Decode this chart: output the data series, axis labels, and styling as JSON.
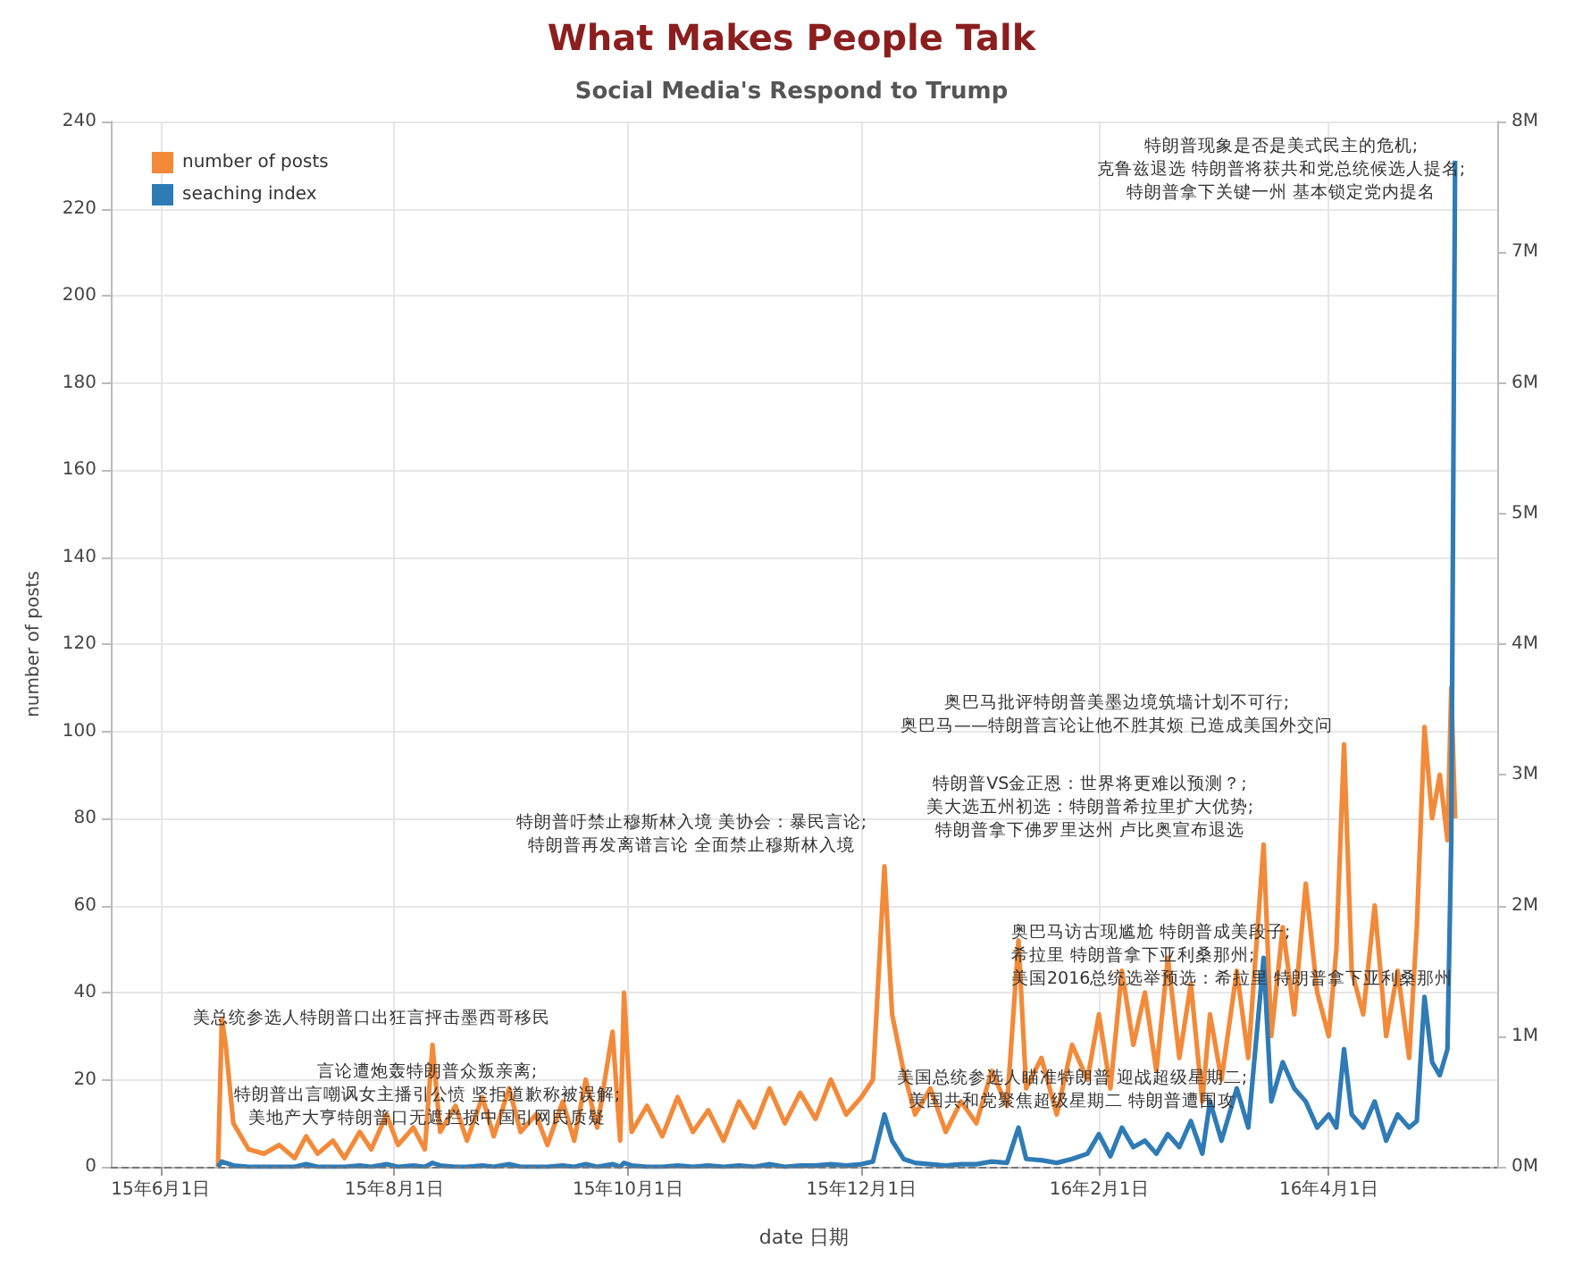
{
  "chart_data": {
    "type": "line",
    "title": "What Makes People Talk",
    "subtitle": "Social Media's Respond to Trump",
    "xlabel": "date 日期",
    "ylabel": "number of posts",
    "x": [
      "2015-06-16",
      "2015-06-17",
      "2015-06-18",
      "2015-06-20",
      "2015-06-24",
      "2015-06-28",
      "2015-07-02",
      "2015-07-06",
      "2015-07-09",
      "2015-07-12",
      "2015-07-16",
      "2015-07-19",
      "2015-07-23",
      "2015-07-26",
      "2015-07-30",
      "2015-08-02",
      "2015-08-06",
      "2015-08-09",
      "2015-08-11",
      "2015-08-13",
      "2015-08-17",
      "2015-08-20",
      "2015-08-24",
      "2015-08-27",
      "2015-08-31",
      "2015-09-03",
      "2015-09-07",
      "2015-09-10",
      "2015-09-14",
      "2015-09-17",
      "2015-09-20",
      "2015-09-23",
      "2015-09-27",
      "2015-09-29",
      "2015-09-30",
      "2015-10-02",
      "2015-10-06",
      "2015-10-10",
      "2015-10-14",
      "2015-10-18",
      "2015-10-22",
      "2015-10-26",
      "2015-10-30",
      "2015-11-03",
      "2015-11-07",
      "2015-11-11",
      "2015-11-15",
      "2015-11-19",
      "2015-11-23",
      "2015-11-27",
      "2015-12-01",
      "2015-12-04",
      "2015-12-07",
      "2015-12-09",
      "2015-12-12",
      "2015-12-15",
      "2015-12-19",
      "2015-12-23",
      "2015-12-27",
      "2015-12-31",
      "2016-01-04",
      "2016-01-08",
      "2016-01-11",
      "2016-01-13",
      "2016-01-17",
      "2016-01-21",
      "2016-01-25",
      "2016-01-29",
      "2016-02-01",
      "2016-02-04",
      "2016-02-07",
      "2016-02-10",
      "2016-02-13",
      "2016-02-16",
      "2016-02-19",
      "2016-02-22",
      "2016-02-25",
      "2016-02-28",
      "2016-03-01",
      "2016-03-04",
      "2016-03-08",
      "2016-03-11",
      "2016-03-15",
      "2016-03-17",
      "2016-03-20",
      "2016-03-23",
      "2016-03-26",
      "2016-03-29",
      "2016-04-01",
      "2016-04-03",
      "2016-04-05",
      "2016-04-07",
      "2016-04-10",
      "2016-04-13",
      "2016-04-16",
      "2016-04-19",
      "2016-04-22",
      "2016-04-24",
      "2016-04-26",
      "2016-04-28",
      "2016-04-30",
      "2016-05-02",
      "2016-05-03",
      "2016-05-04"
    ],
    "series": [
      {
        "name": "number of posts",
        "color": "#f28a3a",
        "values": [
          0,
          34,
          28,
          10,
          4,
          3,
          5,
          2,
          7,
          3,
          6,
          2,
          8,
          4,
          12,
          5,
          9,
          4,
          28,
          8,
          14,
          6,
          16,
          7,
          18,
          8,
          12,
          5,
          15,
          6,
          20,
          9,
          31,
          6,
          40,
          8,
          14,
          7,
          16,
          8,
          13,
          6,
          15,
          9,
          18,
          10,
          17,
          11,
          20,
          12,
          16,
          20,
          69,
          35,
          22,
          12,
          18,
          8,
          15,
          10,
          22,
          14,
          52,
          18,
          25,
          12,
          28,
          20,
          35,
          18,
          45,
          28,
          40,
          22,
          48,
          25,
          42,
          15,
          35,
          20,
          45,
          25,
          74,
          30,
          55,
          35,
          65,
          40,
          30,
          50,
          97,
          45,
          35,
          60,
          30,
          45,
          25,
          55,
          101,
          80,
          90,
          75,
          110,
          80
        ]
      },
      {
        "name": "seaching index",
        "color": "#2f7bb6",
        "axis": "y2",
        "values": [
          0,
          40000,
          30000,
          10000,
          0,
          0,
          0,
          0,
          20000,
          0,
          0,
          0,
          10000,
          0,
          20000,
          0,
          10000,
          0,
          30000,
          10000,
          0,
          0,
          10000,
          0,
          20000,
          0,
          0,
          0,
          10000,
          0,
          20000,
          0,
          20000,
          0,
          30000,
          10000,
          0,
          0,
          10000,
          0,
          10000,
          0,
          10000,
          0,
          20000,
          0,
          10000,
          10000,
          20000,
          10000,
          20000,
          40000,
          400000,
          200000,
          60000,
          30000,
          20000,
          10000,
          20000,
          20000,
          40000,
          30000,
          300000,
          60000,
          50000,
          30000,
          60000,
          100000,
          250000,
          80000,
          300000,
          150000,
          200000,
          100000,
          250000,
          150000,
          350000,
          100000,
          500000,
          200000,
          600000,
          300000,
          1600000,
          500000,
          800000,
          600000,
          500000,
          300000,
          400000,
          300000,
          900000,
          400000,
          300000,
          500000,
          200000,
          400000,
          300000,
          350000,
          1300000,
          800000,
          700000,
          900000,
          2500000,
          7700000
        ]
      }
    ],
    "xlim": [
      "2015-05-19",
      "2016-05-15"
    ],
    "xticks": [
      {
        "value": "2015-06-01",
        "label": "15年6月1日"
      },
      {
        "value": "2015-08-01",
        "label": "15年8月1日"
      },
      {
        "value": "2015-10-01",
        "label": "15年10月1日"
      },
      {
        "value": "2015-12-01",
        "label": "15年12月1日"
      },
      {
        "value": "2016-02-01",
        "label": "16年2月1日"
      },
      {
        "value": "2016-04-01",
        "label": "16年4月1日"
      }
    ],
    "ylim": [
      0,
      240
    ],
    "yticks": [
      0,
      20,
      40,
      60,
      80,
      100,
      120,
      140,
      160,
      180,
      200,
      220,
      240
    ],
    "y2lim": [
      0,
      8000000
    ],
    "y2ticks": [
      {
        "value": 0,
        "label": "0M"
      },
      {
        "value": 1000000,
        "label": "1M"
      },
      {
        "value": 2000000,
        "label": "2M"
      },
      {
        "value": 3000000,
        "label": "3M"
      },
      {
        "value": 4000000,
        "label": "4M"
      },
      {
        "value": 5000000,
        "label": "5M"
      },
      {
        "value": 6000000,
        "label": "6M"
      },
      {
        "value": 7000000,
        "label": "7M"
      },
      {
        "value": 8000000,
        "label": "8M"
      }
    ],
    "ref_lines": [
      {
        "axis": "y",
        "value": 0,
        "color": "#777777",
        "line_style": "dashed"
      }
    ],
    "annotations": [
      "美总统参选人特朗普口出狂言抨击墨西哥移民",
      "言论遭炮轰特朗普众叛亲离;\n特朗普出言嘲讽女主播引公愤 坚拒道歉称被误解;\n美地产大亨特朗普口无遮拦损中国引网民质疑",
      "特朗普吁禁止穆斯林入境 美协会：暴民言论;\n特朗普再发离谱言论 全面禁止穆斯林入境",
      "美国总统参选人瞄准特朗普 迎战超级星期二;\n美国共和党聚焦超级星期二 特朗普遭围攻",
      "奥巴马访古现尴尬 特朗普成美段子;\n希拉里 特朗普拿下亚利桑那州;\n美国2016总统选举预选：希拉里 特朗普拿下亚利桑那州",
      "特朗普VS金正恩：世界将更难以预测？;\n美大选五州初选：特朗普希拉里扩大优势;\n特朗普拿下佛罗里达州 卢比奥宣布退选",
      "奥巴马批评特朗普美墨边境筑墙计划不可行;\n奥巴马——特朗普言论让他不胜其烦 已造成美国外交问",
      "特朗普现象是否是美式民主的危机;\n克鲁兹退选 特朗普将获共和党总统候选人提名;\n特朗普拿下关键一州 基本锁定党内提名"
    ],
    "grid": true,
    "legend": "top left"
  }
}
